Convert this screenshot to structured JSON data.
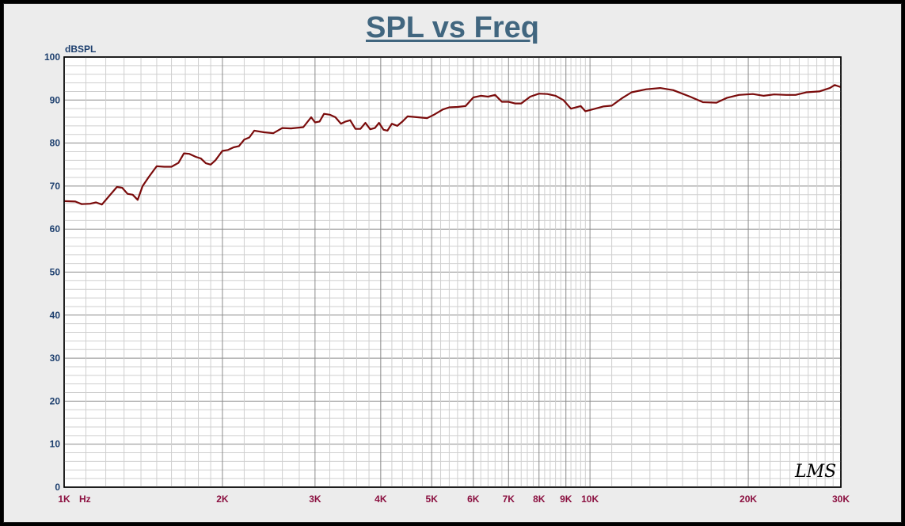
{
  "chart_data": {
    "type": "line",
    "title": "SPL vs Freq",
    "ylabel": "dBSPL",
    "xunit": "Hz",
    "xscale": "log",
    "xlim": [
      1000,
      30000
    ],
    "ylim": [
      0,
      100
    ],
    "grid": true,
    "yticks": [
      0,
      10,
      20,
      30,
      40,
      50,
      60,
      70,
      80,
      90,
      100
    ],
    "xticks": [
      {
        "value": 1000,
        "label": "1K"
      },
      {
        "value": 2000,
        "label": "2K"
      },
      {
        "value": 3000,
        "label": "3K"
      },
      {
        "value": 4000,
        "label": "4K"
      },
      {
        "value": 5000,
        "label": "5K"
      },
      {
        "value": 6000,
        "label": "6K"
      },
      {
        "value": 7000,
        "label": "7K"
      },
      {
        "value": 8000,
        "label": "8K"
      },
      {
        "value": 9000,
        "label": "9K"
      },
      {
        "value": 10000,
        "label": "10K"
      },
      {
        "value": 20000,
        "label": "20K"
      },
      {
        "value": 30000,
        "label": "30K"
      }
    ],
    "series": [
      {
        "color": "#7a0b0b",
        "points": [
          [
            1000,
            66.5
          ],
          [
            1050,
            66.4
          ],
          [
            1080,
            65.8
          ],
          [
            1120,
            65.9
          ],
          [
            1150,
            66.2
          ],
          [
            1180,
            65.7
          ],
          [
            1220,
            67.8
          ],
          [
            1260,
            69.8
          ],
          [
            1290,
            69.6
          ],
          [
            1320,
            68.2
          ],
          [
            1350,
            68.0
          ],
          [
            1380,
            66.8
          ],
          [
            1410,
            70.0
          ],
          [
            1450,
            72.2
          ],
          [
            1500,
            74.6
          ],
          [
            1550,
            74.5
          ],
          [
            1600,
            74.5
          ],
          [
            1650,
            75.4
          ],
          [
            1690,
            77.6
          ],
          [
            1730,
            77.5
          ],
          [
            1780,
            76.8
          ],
          [
            1820,
            76.4
          ],
          [
            1860,
            75.3
          ],
          [
            1900,
            75.0
          ],
          [
            1940,
            76.0
          ],
          [
            2000,
            78.2
          ],
          [
            2050,
            78.4
          ],
          [
            2100,
            79.0
          ],
          [
            2150,
            79.3
          ],
          [
            2200,
            80.8
          ],
          [
            2250,
            81.3
          ],
          [
            2300,
            82.9
          ],
          [
            2400,
            82.5
          ],
          [
            2500,
            82.3
          ],
          [
            2600,
            83.5
          ],
          [
            2700,
            83.4
          ],
          [
            2850,
            83.7
          ],
          [
            2950,
            86.0
          ],
          [
            3000,
            84.8
          ],
          [
            3060,
            85.0
          ],
          [
            3120,
            86.8
          ],
          [
            3200,
            86.6
          ],
          [
            3280,
            86.0
          ],
          [
            3360,
            84.5
          ],
          [
            3430,
            85.0
          ],
          [
            3500,
            85.3
          ],
          [
            3580,
            83.3
          ],
          [
            3660,
            83.3
          ],
          [
            3740,
            84.7
          ],
          [
            3820,
            83.2
          ],
          [
            3900,
            83.5
          ],
          [
            3970,
            84.7
          ],
          [
            4050,
            83.1
          ],
          [
            4120,
            82.9
          ],
          [
            4200,
            84.5
          ],
          [
            4300,
            84.0
          ],
          [
            4400,
            85.0
          ],
          [
            4500,
            86.2
          ],
          [
            4700,
            86.0
          ],
          [
            4900,
            85.8
          ],
          [
            5050,
            86.6
          ],
          [
            5250,
            87.8
          ],
          [
            5400,
            88.3
          ],
          [
            5600,
            88.4
          ],
          [
            5800,
            88.6
          ],
          [
            6000,
            90.6
          ],
          [
            6200,
            91.0
          ],
          [
            6400,
            90.8
          ],
          [
            6600,
            91.2
          ],
          [
            6800,
            89.6
          ],
          [
            7000,
            89.6
          ],
          [
            7200,
            89.2
          ],
          [
            7400,
            89.2
          ],
          [
            7700,
            90.8
          ],
          [
            8000,
            91.5
          ],
          [
            8300,
            91.4
          ],
          [
            8600,
            91.0
          ],
          [
            8900,
            90.0
          ],
          [
            9200,
            88.0
          ],
          [
            9600,
            88.6
          ],
          [
            9800,
            87.4
          ],
          [
            10100,
            87.8
          ],
          [
            10600,
            88.5
          ],
          [
            11000,
            88.7
          ],
          [
            11500,
            90.4
          ],
          [
            12000,
            91.8
          ],
          [
            12800,
            92.5
          ],
          [
            13600,
            92.8
          ],
          [
            14400,
            92.3
          ],
          [
            15500,
            90.8
          ],
          [
            16400,
            89.5
          ],
          [
            17400,
            89.4
          ],
          [
            18200,
            90.5
          ],
          [
            19200,
            91.2
          ],
          [
            20400,
            91.4
          ],
          [
            21400,
            91.0
          ],
          [
            22400,
            91.3
          ],
          [
            23600,
            91.2
          ],
          [
            24600,
            91.2
          ],
          [
            25800,
            91.8
          ],
          [
            27300,
            92.0
          ],
          [
            28600,
            92.8
          ],
          [
            29200,
            93.5
          ],
          [
            30000,
            93.0
          ]
        ]
      }
    ]
  },
  "branding": {
    "logo_text": "LMS"
  }
}
